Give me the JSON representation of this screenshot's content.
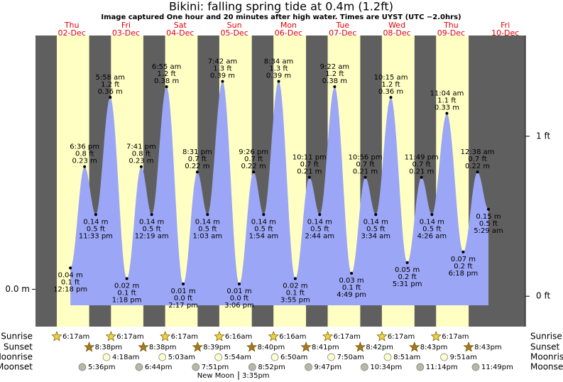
{
  "chart_data": {
    "type": "tide",
    "title": "Bikini: falling  spring tide at 0.4m (1.2ft)",
    "subtitle": "Image captured One hour and 20 minutes after high water. Times are UYST (UTC −2.0hrs)",
    "ylim": [
      -0.07,
      0.476
    ],
    "yticks": [
      {
        "value": 0,
        "label": "0.0 m"
      }
    ],
    "y2lim": [
      -0.19,
      1.63
    ],
    "y2ticks": [
      {
        "value": 0,
        "label": "0 ft"
      },
      {
        "value": 1,
        "label": "1 ft"
      }
    ],
    "colors": {
      "night": "#5f5f5f",
      "day": "#ffffc4",
      "water": "#9ca6f6",
      "header": "#e00000"
    },
    "row_labels": {
      "sunrise": "Sunrise",
      "sunset": "Sunset",
      "moonrise": "Moonrise",
      "moonset": "Moonset"
    },
    "moon_phase": {
      "name": "New Moon",
      "time": "3:35pm"
    },
    "days": [
      {
        "weekday": "Thu",
        "date": "02-Dec",
        "sunrise": "6:17am",
        "sunset": "8:38pm",
        "moonset": "5:36pm",
        "tides": [
          {
            "time": "12:18 pm",
            "value": 0.04,
            "value_label": "0.04 m",
            "ft_label": "0.1 ft"
          },
          {
            "time": "6:36 pm",
            "value": 0.23,
            "value_label": "0.23 m",
            "ft_label": "0.8 ft"
          },
          {
            "time": "11:33 pm",
            "value": 0.14,
            "value_label": "0.14 m",
            "ft_label": "0.5 ft"
          }
        ]
      },
      {
        "weekday": "Fri",
        "date": "03-Dec",
        "sunrise": "6:17am",
        "sunset": "8:38pm",
        "moonrise": "4:18am",
        "moonset": "6:44pm",
        "tides": [
          {
            "time": "5:58 am",
            "value": 0.36,
            "value_label": "0.36 m",
            "ft_label": "1.2 ft"
          },
          {
            "time": "1:18 pm",
            "value": 0.02,
            "value_label": "0.02 m",
            "ft_label": "0.1 ft"
          },
          {
            "time": "7:41 pm",
            "value": 0.23,
            "value_label": "0.23 m",
            "ft_label": "0.8 ft"
          }
        ]
      },
      {
        "weekday": "Sat",
        "date": "04-Dec",
        "sunrise": "6:17am",
        "sunset": "8:39pm",
        "moonrise": "5:03am",
        "moonset": "7:51pm",
        "tides": [
          {
            "time": "12:19 am",
            "value": 0.14,
            "value_label": "0.14 m",
            "ft_label": "0.5 ft"
          },
          {
            "time": "6:55 am",
            "value": 0.38,
            "value_label": "0.38 m",
            "ft_label": "1.2 ft"
          },
          {
            "time": "2:17 pm",
            "value": 0.01,
            "value_label": "0.01 m",
            "ft_label": "0.0 ft"
          },
          {
            "time": "8:31 pm",
            "value": 0.22,
            "value_label": "0.22 m",
            "ft_label": "0.7 ft"
          }
        ]
      },
      {
        "weekday": "Sun",
        "date": "05-Dec",
        "sunrise": "6:16am",
        "sunset": "8:40pm",
        "moonrise": "5:54am",
        "moonset": "8:52pm",
        "tides": [
          {
            "time": "1:03 am",
            "value": 0.14,
            "value_label": "0.14 m",
            "ft_label": "0.5 ft"
          },
          {
            "time": "7:42 am",
            "value": 0.39,
            "value_label": "0.39 m",
            "ft_label": "1.3 ft"
          },
          {
            "time": "3:06 pm",
            "value": 0.01,
            "value_label": "0.01 m",
            "ft_label": "0.0 ft"
          },
          {
            "time": "9:26 pm",
            "value": 0.22,
            "value_label": "0.22 m",
            "ft_label": "0.7 ft"
          }
        ]
      },
      {
        "weekday": "Mon",
        "date": "06-Dec",
        "sunrise": "6:16am",
        "sunset": "8:41pm",
        "moonrise": "6:50am",
        "moonset": "9:47pm",
        "tides": [
          {
            "time": "1:54 am",
            "value": 0.14,
            "value_label": "0.14 m",
            "ft_label": "0.5 ft"
          },
          {
            "time": "8:34 am",
            "value": 0.39,
            "value_label": "0.39 m",
            "ft_label": "1.3 ft"
          },
          {
            "time": "3:55 pm",
            "value": 0.02,
            "value_label": "0.02 m",
            "ft_label": "0.1 ft"
          },
          {
            "time": "10:11 pm",
            "value": 0.21,
            "value_label": "0.21 m",
            "ft_label": "0.7 ft"
          }
        ]
      },
      {
        "weekday": "Tue",
        "date": "07-Dec",
        "sunrise": "6:17am",
        "sunset": "8:42pm",
        "moonrise": "7:50am",
        "moonset": "10:34pm",
        "tides": [
          {
            "time": "2:44 am",
            "value": 0.14,
            "value_label": "0.14 m",
            "ft_label": "0.5 ft"
          },
          {
            "time": "9:22 am",
            "value": 0.38,
            "value_label": "0.38 m",
            "ft_label": "1.2 ft"
          },
          {
            "time": "4:49 pm",
            "value": 0.03,
            "value_label": "0.03 m",
            "ft_label": "0.1 ft"
          },
          {
            "time": "10:56 pm",
            "value": 0.21,
            "value_label": "0.21 m",
            "ft_label": "0.7 ft"
          }
        ]
      },
      {
        "weekday": "Wed",
        "date": "08-Dec",
        "sunrise": "6:17am",
        "sunset": "8:43pm",
        "moonrise": "8:51am",
        "moonset": "11:14pm",
        "tides": [
          {
            "time": "3:34 am",
            "value": 0.14,
            "value_label": "0.14 m",
            "ft_label": "0.5 ft"
          },
          {
            "time": "10:15 am",
            "value": 0.36,
            "value_label": "0.36 m",
            "ft_label": "1.2 ft"
          },
          {
            "time": "5:31 pm",
            "value": 0.05,
            "value_label": "0.05 m",
            "ft_label": "0.2 ft"
          },
          {
            "time": "11:49 pm",
            "value": 0.21,
            "value_label": "0.21 m",
            "ft_label": "0.7 ft"
          }
        ]
      },
      {
        "weekday": "Thu",
        "date": "09-Dec",
        "sunrise": "6:17am",
        "sunset": "8:43pm",
        "moonrise": "9:51am",
        "moonset": "11:49pm",
        "tides": [
          {
            "time": "4:26 am",
            "value": 0.14,
            "value_label": "0.14 m",
            "ft_label": "0.5 ft"
          },
          {
            "time": "11:04 am",
            "value": 0.33,
            "value_label": "0.33 m",
            "ft_label": "1.1 ft"
          },
          {
            "time": "6:18 pm",
            "value": 0.07,
            "value_label": "0.07 m",
            "ft_label": "0.2 ft"
          }
        ]
      },
      {
        "weekday": "Fri",
        "date": "10-Dec",
        "tides": [
          {
            "time": "12:38 am",
            "value": 0.22,
            "value_label": "0.22 m",
            "ft_label": "0.7 ft"
          },
          {
            "time": "5:29 am",
            "value": 0.15,
            "value_label": "0.15 m",
            "ft_label": "0.5 ft"
          }
        ]
      }
    ]
  }
}
